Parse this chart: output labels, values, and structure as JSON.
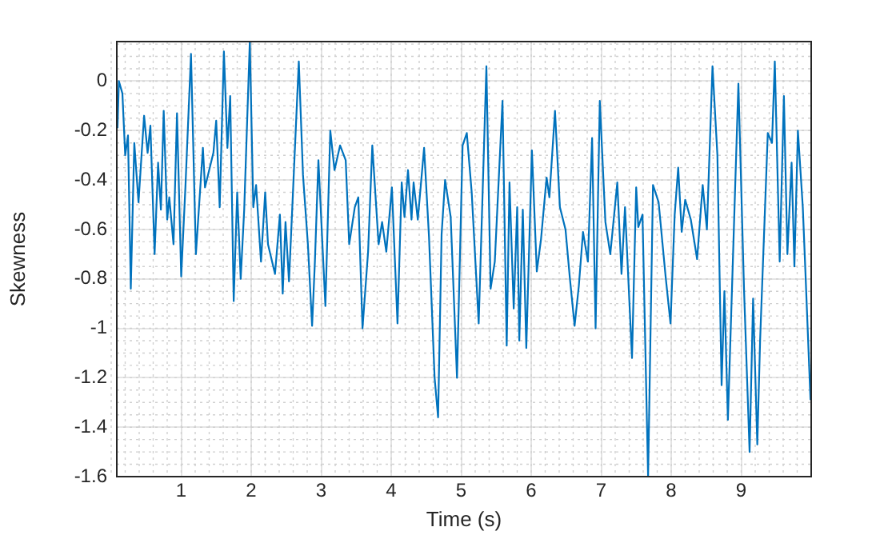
{
  "chart_data": {
    "type": "line",
    "xlabel": "Time (s)",
    "ylabel": "Skewness",
    "xlim": [
      0.08,
      10
    ],
    "ylim": [
      -1.6,
      0.16
    ],
    "xticks": [
      1,
      2,
      3,
      4,
      5,
      6,
      7,
      8,
      9
    ],
    "yticks": [
      -1.6,
      -1.4,
      -1.2,
      -1,
      -0.8,
      -0.6,
      -0.4,
      -0.2,
      0
    ],
    "grid": true,
    "legend": false,
    "marker": "none",
    "line_style": "solid",
    "series": [
      {
        "color": "#0072bd",
        "x": [
          0.09,
          0.11,
          0.16,
          0.2,
          0.24,
          0.28,
          0.33,
          0.39,
          0.47,
          0.52,
          0.56,
          0.62,
          0.67,
          0.71,
          0.75,
          0.8,
          0.83,
          0.89,
          0.94,
          1.0,
          1.06,
          1.14,
          1.21,
          1.31,
          1.34,
          1.46,
          1.5,
          1.55,
          1.61,
          1.66,
          1.7,
          1.75,
          1.8,
          1.85,
          1.9,
          1.98,
          2.03,
          2.07,
          2.14,
          2.2,
          2.24,
          2.34,
          2.41,
          2.45,
          2.49,
          2.54,
          2.68,
          2.74,
          2.81,
          2.87,
          2.91,
          2.96,
          3.06,
          3.13,
          3.19,
          3.27,
          3.35,
          3.4,
          3.48,
          3.53,
          3.59,
          3.67,
          3.73,
          3.82,
          3.87,
          3.93,
          4.01,
          4.09,
          4.15,
          4.19,
          4.24,
          4.29,
          4.32,
          4.38,
          4.47,
          4.54,
          4.62,
          4.67,
          4.72,
          4.77,
          4.85,
          4.94,
          5.02,
          5.08,
          5.15,
          5.25,
          5.36,
          5.42,
          5.48,
          5.59,
          5.65,
          5.69,
          5.75,
          5.8,
          5.83,
          5.88,
          5.93,
          6.01,
          6.08,
          6.14,
          6.22,
          6.26,
          6.34,
          6.41,
          6.49,
          6.55,
          6.62,
          6.68,
          6.74,
          6.81,
          6.87,
          6.92,
          6.98,
          7.06,
          7.13,
          7.23,
          7.29,
          7.34,
          7.44,
          7.5,
          7.53,
          7.59,
          7.67,
          7.74,
          7.82,
          7.92,
          7.99,
          8.05,
          8.1,
          8.15,
          8.2,
          8.28,
          8.37,
          8.45,
          8.51,
          8.59,
          8.66,
          8.72,
          8.76,
          8.81,
          8.96,
          9.04,
          9.12,
          9.17,
          9.23,
          9.27,
          9.38,
          9.44,
          9.48,
          9.55,
          9.61,
          9.66,
          9.72,
          9.76,
          9.81,
          9.88,
          9.92,
          9.99
        ],
        "values": [
          -0.19,
          0,
          -0.05,
          -0.3,
          -0.22,
          -0.84,
          -0.25,
          -0.49,
          -0.14,
          -0.29,
          -0.18,
          -0.7,
          -0.33,
          -0.52,
          -0.12,
          -0.56,
          -0.47,
          -0.66,
          -0.13,
          -0.79,
          -0.43,
          0.11,
          -0.7,
          -0.27,
          -0.43,
          -0.29,
          -0.16,
          -0.51,
          0.12,
          -0.27,
          -0.06,
          -0.89,
          -0.45,
          -0.8,
          -0.52,
          0.16,
          -0.51,
          -0.42,
          -0.73,
          -0.45,
          -0.66,
          -0.78,
          -0.54,
          -0.86,
          -0.57,
          -0.81,
          0.08,
          -0.38,
          -0.66,
          -0.99,
          -0.73,
          -0.32,
          -0.91,
          -0.2,
          -0.36,
          -0.26,
          -0.32,
          -0.66,
          -0.51,
          -0.47,
          -1.0,
          -0.69,
          -0.26,
          -0.66,
          -0.57,
          -0.69,
          -0.43,
          -0.98,
          -0.41,
          -0.55,
          -0.36,
          -0.56,
          -0.41,
          -0.56,
          -0.27,
          -0.63,
          -1.2,
          -1.36,
          -0.62,
          -0.4,
          -0.55,
          -1.2,
          -0.26,
          -0.21,
          -0.45,
          -0.98,
          0.06,
          -0.84,
          -0.73,
          -0.08,
          -1.07,
          -0.41,
          -0.92,
          -0.51,
          -1.05,
          -0.52,
          -1.08,
          -0.28,
          -0.77,
          -0.64,
          -0.39,
          -0.47,
          -0.12,
          -0.51,
          -0.6,
          -0.79,
          -0.99,
          -0.83,
          -0.61,
          -0.73,
          -0.23,
          -1.0,
          -0.08,
          -0.57,
          -0.7,
          -0.41,
          -0.78,
          -0.51,
          -1.12,
          -0.43,
          -0.59,
          -0.54,
          -1.6,
          -0.42,
          -0.49,
          -0.79,
          -0.98,
          -0.54,
          -0.35,
          -0.61,
          -0.48,
          -0.56,
          -0.72,
          -0.42,
          -0.6,
          0.06,
          -0.3,
          -1.23,
          -0.85,
          -1.37,
          -0.01,
          -0.84,
          -1.5,
          -0.88,
          -1.47,
          -1.05,
          -0.21,
          -0.25,
          0.08,
          -0.73,
          -0.06,
          -0.7,
          -0.33,
          -0.75,
          -0.2,
          -0.51,
          -0.79,
          -1.29
        ]
      }
    ]
  }
}
